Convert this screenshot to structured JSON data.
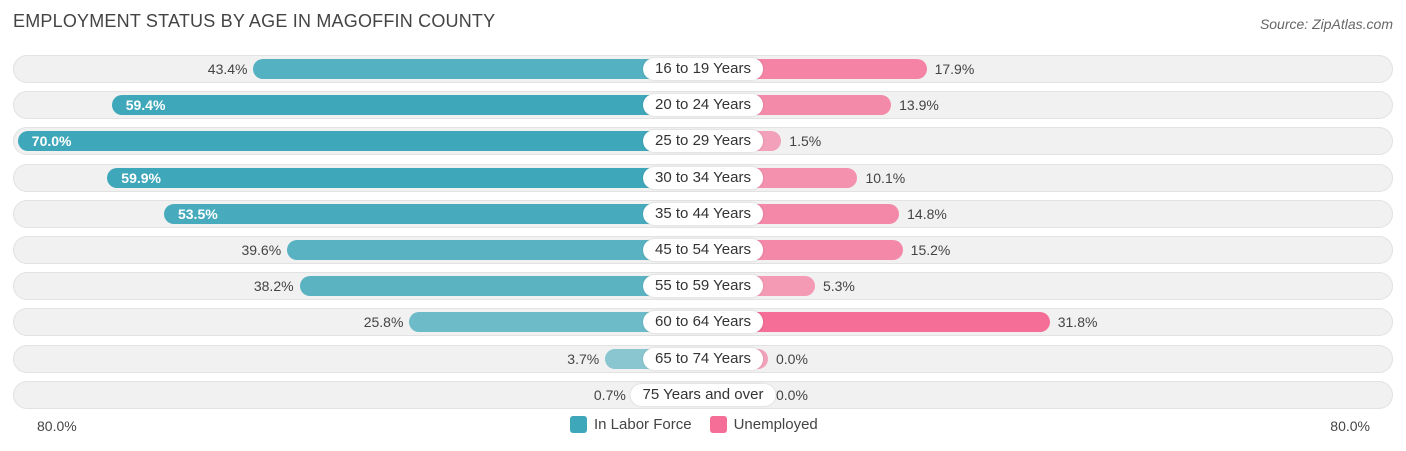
{
  "chart_data": {
    "type": "bar",
    "orientation": "horizontal-diverging",
    "title": "EMPLOYMENT STATUS BY AGE IN MAGOFFIN COUNTY",
    "source": "Source: ZipAtlas.com",
    "categories": [
      "16 to 19 Years",
      "20 to 24 Years",
      "25 to 29 Years",
      "30 to 34 Years",
      "35 to 44 Years",
      "45 to 54 Years",
      "55 to 59 Years",
      "60 to 64 Years",
      "65 to 74 Years",
      "75 Years and over"
    ],
    "series": [
      {
        "name": "In Labor Force",
        "values": [
          43.4,
          59.4,
          70.0,
          59.9,
          53.5,
          39.6,
          38.2,
          25.8,
          3.7,
          0.7
        ],
        "labels": [
          "43.4%",
          "59.4%",
          "70.0%",
          "59.9%",
          "53.5%",
          "39.6%",
          "38.2%",
          "25.8%",
          "3.7%",
          "0.7%"
        ],
        "color": "#3ea7b9"
      },
      {
        "name": "Unemployed",
        "values": [
          17.9,
          13.9,
          1.5,
          10.1,
          14.8,
          15.2,
          5.3,
          31.8,
          0.0,
          0.0
        ],
        "labels": [
          "17.9%",
          "13.9%",
          "1.5%",
          "10.1%",
          "14.8%",
          "15.2%",
          "5.3%",
          "31.8%",
          "0.0%",
          "0.0%"
        ],
        "color": "#f46e97"
      }
    ],
    "xlim": [
      -80,
      80
    ],
    "axis_left_label": "80.0%",
    "axis_right_label": "80.0%",
    "legend_position": "bottom-center"
  }
}
